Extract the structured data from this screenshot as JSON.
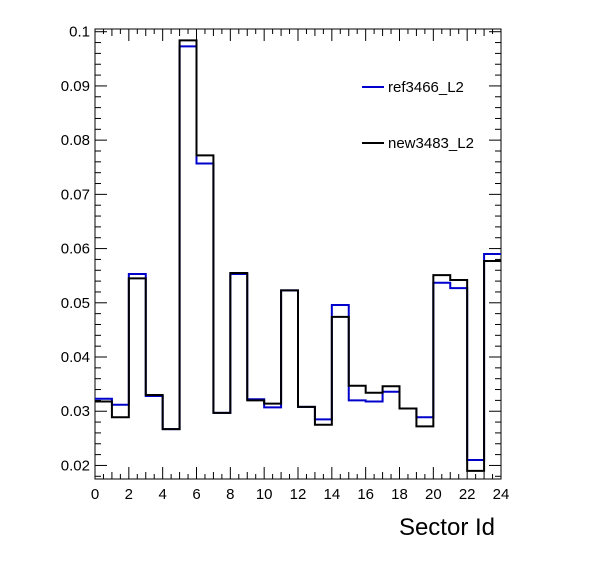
{
  "chart_data": {
    "type": "line",
    "title": "",
    "xlabel": "Sector Id",
    "ylabel": "",
    "xlim": [
      0,
      24
    ],
    "ylim": [
      0.0175,
      0.1005
    ],
    "x_bins": [
      0,
      1,
      2,
      3,
      4,
      5,
      6,
      7,
      8,
      9,
      10,
      11,
      12,
      13,
      14,
      15,
      16,
      17,
      18,
      19,
      20,
      21,
      22,
      23,
      24
    ],
    "x_ticks": [
      0,
      2,
      4,
      6,
      8,
      10,
      12,
      14,
      16,
      18,
      20,
      22,
      24
    ],
    "x_tick_labels": [
      "0",
      "2",
      "4",
      "6",
      "8",
      "10",
      "12",
      "14",
      "16",
      "18",
      "20",
      "22",
      "24"
    ],
    "y_ticks": [
      0.02,
      0.03,
      0.04,
      0.05,
      0.06,
      0.07,
      0.08,
      0.09,
      0.1
    ],
    "y_tick_labels": [
      "0.02",
      "0.03",
      "0.04",
      "0.05",
      "0.06",
      "0.07",
      "0.08",
      "0.09",
      "0.1"
    ],
    "grid": false,
    "legend_position": "top-right",
    "series": [
      {
        "name": "ref3466_L2",
        "color": "#0000cc",
        "values": [
          0.0323,
          0.0312,
          0.0553,
          0.0328,
          0.0267,
          0.0973,
          0.0757,
          0.0297,
          0.0553,
          0.0322,
          0.0307,
          0.0523,
          0.0308,
          0.0285,
          0.0496,
          0.032,
          0.0318,
          0.0336,
          0.0305,
          0.0289,
          0.0537,
          0.0527,
          0.021,
          0.059
        ]
      },
      {
        "name": "new3483_L2",
        "color": "#000000",
        "values": [
          0.0318,
          0.0289,
          0.0545,
          0.033,
          0.0267,
          0.0984,
          0.0772,
          0.0297,
          0.0555,
          0.032,
          0.0314,
          0.0523,
          0.0308,
          0.0275,
          0.0474,
          0.0347,
          0.0334,
          0.0346,
          0.0305,
          0.0272,
          0.0551,
          0.0542,
          0.019,
          0.0577
        ]
      }
    ]
  }
}
